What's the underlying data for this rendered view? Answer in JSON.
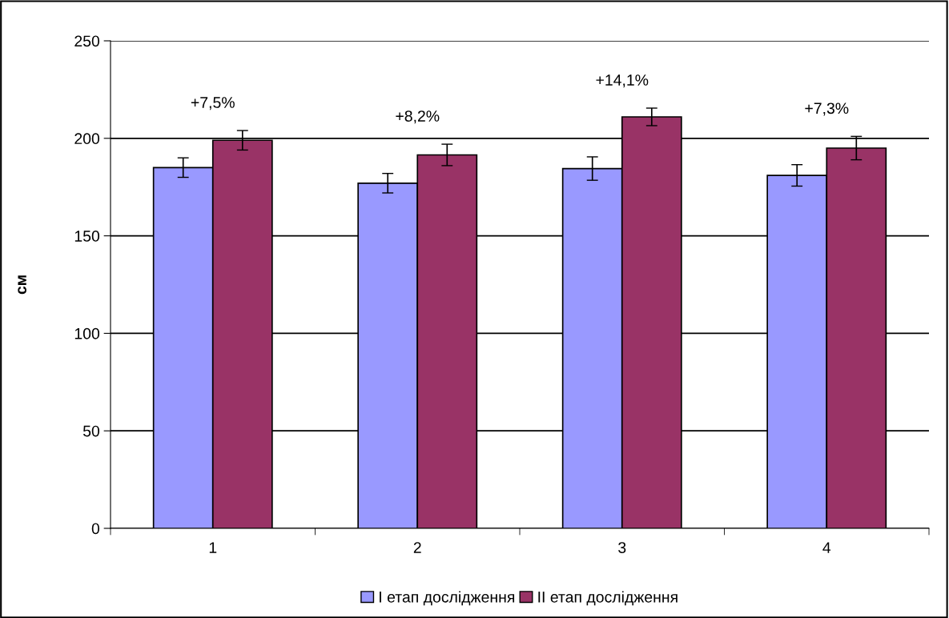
{
  "chart_data": {
    "type": "bar",
    "ylabel": "см",
    "categories": [
      "1",
      "2",
      "3",
      "4"
    ],
    "series": [
      {
        "name": "I етап дослідження",
        "color": "#9999ff",
        "values": [
          185,
          177,
          184.5,
          181
        ],
        "errors": [
          5,
          5,
          6,
          5.5
        ]
      },
      {
        "name": "II етап дослідження",
        "color": "#993366",
        "values": [
          199,
          191.5,
          211,
          195
        ],
        "errors": [
          5,
          5.5,
          4.5,
          6
        ]
      }
    ],
    "annotations": [
      "+7,5%",
      "+8,2%",
      "+14,1%",
      "+7,3%"
    ],
    "ylim": [
      0,
      250
    ],
    "yticks": [
      0,
      50,
      100,
      150,
      200,
      250
    ],
    "grid": "y",
    "legend": "bottom"
  }
}
